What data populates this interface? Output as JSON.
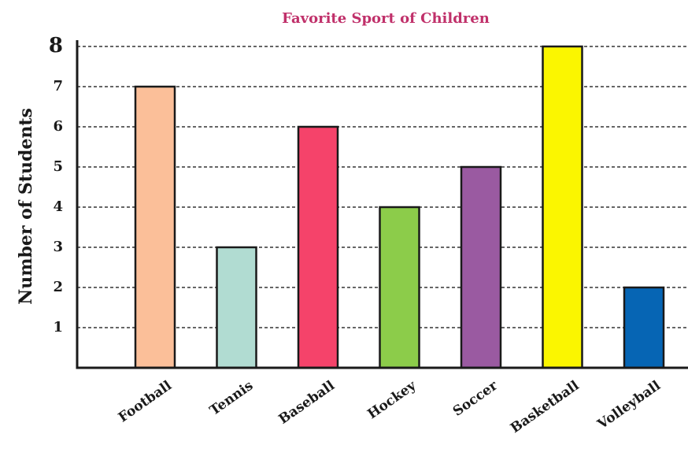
{
  "chart_data": {
    "type": "bar",
    "title": "Favorite Sport of Children",
    "xlabel": "",
    "ylabel": "Number of Students",
    "ylim": [
      0,
      8
    ],
    "yticks": [
      1,
      2,
      3,
      4,
      5,
      6,
      7,
      8
    ],
    "grid": true,
    "categories": [
      "Football",
      "Tennis",
      "Baseball",
      "Hockey",
      "Soccer",
      "Basketball",
      "Volleyball"
    ],
    "values": [
      7,
      3,
      6,
      4,
      5,
      8,
      2
    ],
    "colors": [
      "#fbbf99",
      "#b1dcd2",
      "#f5436a",
      "#8ccc4a",
      "#9a5aa1",
      "#fbf600",
      "#0665b4"
    ]
  }
}
